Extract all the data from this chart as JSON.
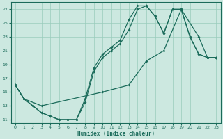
{
  "xlabel": "Humidex (Indice chaleur)",
  "background_color": "#cce8e0",
  "grid_color": "#99ccbb",
  "line_color": "#1a6b5a",
  "xlim": [
    -0.5,
    23.5
  ],
  "ylim": [
    10.5,
    28
  ],
  "xticks": [
    0,
    1,
    2,
    3,
    4,
    5,
    6,
    7,
    8,
    9,
    10,
    11,
    12,
    13,
    14,
    15,
    16,
    17,
    18,
    19,
    20,
    21,
    22,
    23
  ],
  "yticks": [
    11,
    13,
    15,
    17,
    19,
    21,
    23,
    25,
    27
  ],
  "line1_x": [
    0,
    1,
    2,
    3,
    4,
    5,
    6,
    7,
    8,
    9,
    10,
    11,
    12,
    13,
    14,
    15,
    16,
    17,
    18,
    19,
    20,
    21,
    22,
    23
  ],
  "line1_y": [
    16,
    14,
    13,
    12,
    11.5,
    11,
    11,
    11,
    13.5,
    18,
    20,
    21,
    22,
    24,
    27,
    27.5,
    26,
    23.5,
    27,
    27,
    23,
    20.5,
    20,
    20
  ],
  "line2_x": [
    0,
    1,
    2,
    3,
    4,
    5,
    6,
    7,
    8,
    9,
    10,
    11,
    12,
    13,
    14,
    15,
    16,
    17,
    18,
    19,
    20,
    21,
    22,
    23
  ],
  "line2_y": [
    16,
    14,
    13,
    12,
    11.5,
    11,
    11,
    11,
    14,
    18.5,
    20.5,
    21.5,
    22.5,
    25.5,
    27.5,
    27.5,
    26,
    23.5,
    27,
    27,
    23,
    20.5,
    20,
    20
  ],
  "line3_x": [
    0,
    1,
    3,
    10,
    13,
    15,
    17,
    19,
    21,
    22,
    23
  ],
  "line3_y": [
    16,
    14,
    13,
    15,
    16,
    19.5,
    21,
    27,
    23,
    20,
    20
  ]
}
